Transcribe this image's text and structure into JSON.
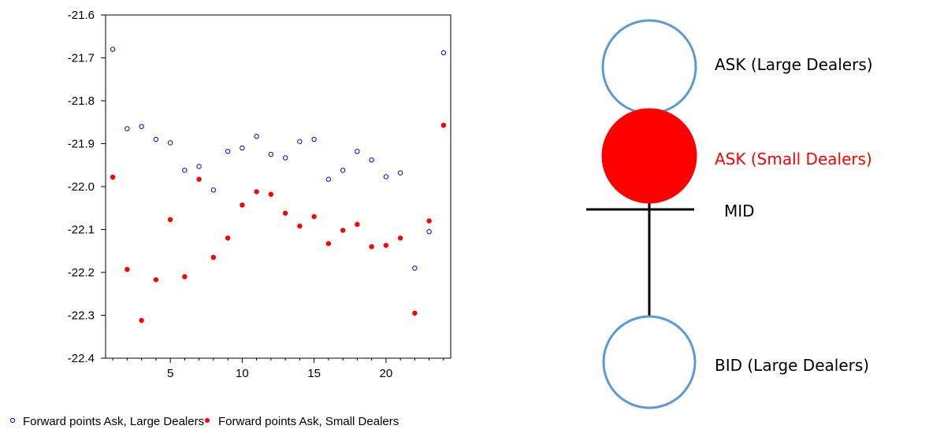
{
  "chart_data": {
    "type": "scatter",
    "title": "",
    "xlabel": "",
    "ylabel": "",
    "xlim": [
      0.5,
      24.5
    ],
    "ylim": [
      -22.4,
      -21.6
    ],
    "x_ticks": [
      5,
      10,
      15,
      20
    ],
    "x_tick_labels": [
      "5",
      "10",
      "15",
      "20"
    ],
    "y_ticks": [
      -21.6,
      -21.7,
      -21.8,
      -21.9,
      -22.0,
      -22.1,
      -22.2,
      -22.3,
      -22.4
    ],
    "y_tick_labels": [
      "-21.6",
      "-21.7",
      "-21.8",
      "-21.9",
      "-22.0",
      "-22.1",
      "-22.2",
      "-22.3",
      "-22.4"
    ],
    "grid": false,
    "legend_position": "bottom",
    "series": [
      {
        "name": "Forward points Ask, Large Dealers",
        "marker": "open-circle",
        "color": "#0000ff",
        "x": [
          1,
          2,
          3,
          4,
          5,
          6,
          7,
          8,
          9,
          10,
          11,
          12,
          13,
          14,
          15,
          16,
          17,
          18,
          19,
          20,
          21,
          22,
          23,
          24
        ],
        "y": [
          -21.68,
          -21.865,
          -21.86,
          -21.89,
          -21.898,
          -21.962,
          -21.953,
          -22.008,
          -21.918,
          -21.91,
          -21.883,
          -21.925,
          -21.933,
          -21.895,
          -21.89,
          -21.983,
          -21.962,
          -21.918,
          -21.938,
          -21.977,
          -21.968,
          -22.19,
          -22.105,
          -21.688
        ]
      },
      {
        "name": "Forward points Ask, Small Dealers",
        "marker": "filled-circle",
        "color": "#ff0000",
        "x": [
          1,
          2,
          3,
          4,
          5,
          6,
          7,
          8,
          9,
          10,
          11,
          12,
          13,
          14,
          15,
          16,
          17,
          18,
          19,
          20,
          21,
          22,
          23,
          24
        ],
        "y": [
          -21.978,
          -22.193,
          -22.312,
          -22.217,
          -22.077,
          -22.21,
          -21.983,
          -22.165,
          -22.12,
          -22.043,
          -22.012,
          -22.018,
          -22.062,
          -22.092,
          -22.07,
          -22.133,
          -22.102,
          -22.088,
          -22.14,
          -22.137,
          -22.12,
          -22.295,
          -22.08,
          -21.857
        ]
      }
    ]
  },
  "diagram": {
    "items": [
      {
        "label": "ASK (Large Dealers)",
        "color": "#000000",
        "shape": "open-circle",
        "stroke": "#5b9bd5"
      },
      {
        "label": "ASK (Small Dealers)",
        "color": "#ff0000",
        "shape": "filled-circle",
        "fill": "#ff0000"
      },
      {
        "label": "MID",
        "color": "#000000",
        "shape": "tick"
      },
      {
        "label": "BID (Large Dealers)",
        "color": "#000000",
        "shape": "open-circle",
        "stroke": "#5b9bd5"
      }
    ]
  }
}
